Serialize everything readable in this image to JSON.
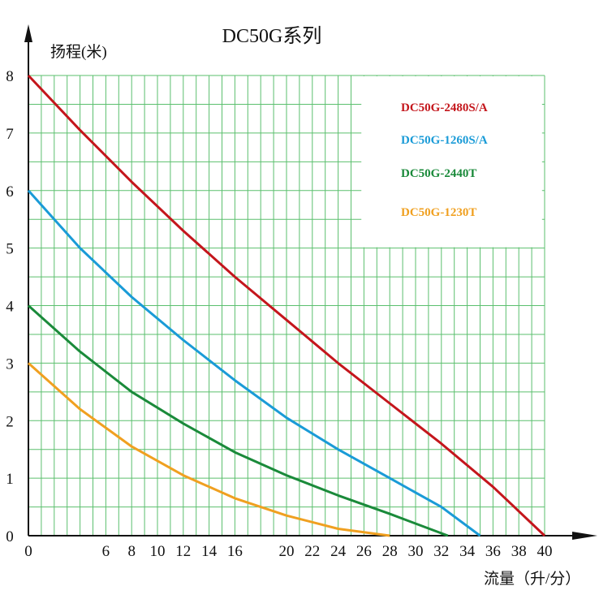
{
  "chart_data": {
    "type": "line",
    "title": "DC50G系列",
    "xlabel": "流量（升/分）",
    "ylabel": "扬程(米)",
    "xlim": [
      0,
      40
    ],
    "ylim": [
      0,
      8
    ],
    "x_ticks": [
      "0",
      "6",
      "8",
      "10",
      "12",
      "14",
      "16",
      "20",
      "22",
      "24",
      "26",
      "28",
      "30",
      "32",
      "34",
      "36",
      "38",
      "40"
    ],
    "x_tick_values": [
      0,
      6,
      8,
      10,
      12,
      14,
      16,
      20,
      22,
      24,
      26,
      28,
      30,
      32,
      34,
      36,
      38,
      40
    ],
    "y_ticks": [
      "0",
      "1",
      "2",
      "3",
      "4",
      "5",
      "6",
      "7",
      "8"
    ],
    "y_tick_values": [
      0,
      1,
      2,
      3,
      4,
      5,
      6,
      7,
      8
    ],
    "grid": true,
    "grid_color": "#5bbf6e",
    "legend_position": "top-right",
    "series": [
      {
        "name": "DC50G-2480S/A",
        "color": "#c4161c",
        "points": [
          [
            0,
            8
          ],
          [
            4,
            7.05
          ],
          [
            8,
            6.15
          ],
          [
            12,
            5.3
          ],
          [
            16,
            4.5
          ],
          [
            20,
            3.75
          ],
          [
            24,
            3.0
          ],
          [
            28,
            2.3
          ],
          [
            32,
            1.6
          ],
          [
            36,
            0.85
          ],
          [
            40,
            0
          ]
        ]
      },
      {
        "name": "DC50G-1260S/A",
        "color": "#1a9bd7",
        "points": [
          [
            0,
            6
          ],
          [
            4,
            5.0
          ],
          [
            8,
            4.15
          ],
          [
            12,
            3.4
          ],
          [
            16,
            2.7
          ],
          [
            20,
            2.05
          ],
          [
            24,
            1.5
          ],
          [
            28,
            1.0
          ],
          [
            32,
            0.5
          ],
          [
            35,
            0
          ]
        ]
      },
      {
        "name": "DC50G-2440T",
        "color": "#1a8a3a",
        "points": [
          [
            0,
            4
          ],
          [
            4,
            3.2
          ],
          [
            8,
            2.5
          ],
          [
            12,
            1.95
          ],
          [
            16,
            1.45
          ],
          [
            20,
            1.05
          ],
          [
            24,
            0.7
          ],
          [
            28,
            0.38
          ],
          [
            32.5,
            0
          ]
        ]
      },
      {
        "name": "DC50G-1230T",
        "color": "#f0a020",
        "points": [
          [
            0,
            3
          ],
          [
            4,
            2.2
          ],
          [
            8,
            1.55
          ],
          [
            12,
            1.05
          ],
          [
            16,
            0.65
          ],
          [
            20,
            0.35
          ],
          [
            24,
            0.12
          ],
          [
            28,
            0
          ]
        ]
      }
    ]
  }
}
